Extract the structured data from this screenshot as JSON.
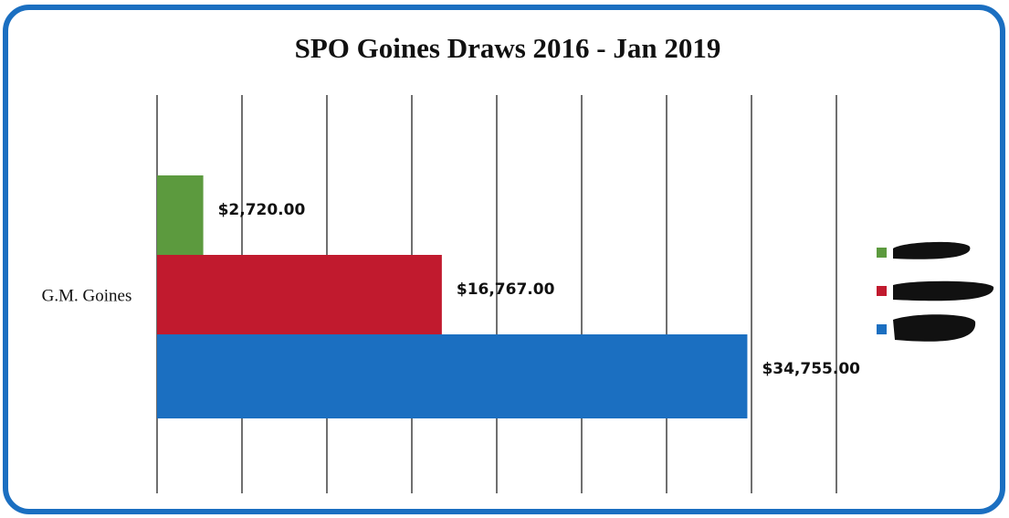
{
  "chart_data": {
    "type": "bar",
    "orientation": "horizontal",
    "title": "SPO Goines Draws 2016 -  Jan 2019",
    "categories": [
      "G.M. Goines"
    ],
    "series": [
      {
        "color": "#5c9a3e",
        "values": [
          2720
        ],
        "value_labels": [
          "$2,720.00"
        ]
      },
      {
        "color": "#c11a2e",
        "values": [
          16767
        ],
        "value_labels": [
          "$16,767.00"
        ]
      },
      {
        "color": "#1b6fc1",
        "values": [
          34755
        ],
        "value_labels": [
          "$34,755.00"
        ]
      }
    ],
    "xlim": [
      0,
      40000
    ],
    "xticks": [
      0,
      5000,
      10000,
      15000,
      20000,
      25000,
      30000,
      35000,
      40000
    ],
    "grid": true
  }
}
